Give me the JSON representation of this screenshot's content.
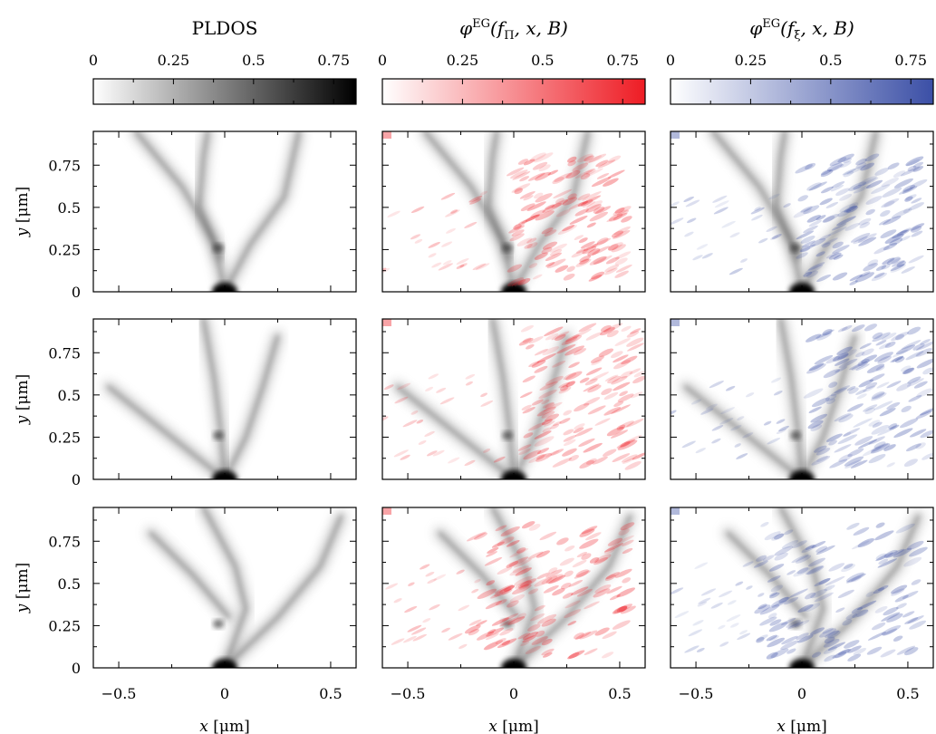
{
  "chart_data": {
    "type": "heatmap",
    "layout": "3 rows x 3 columns of spatial maps sharing x and y axes",
    "columns": [
      {
        "id": "pldos",
        "title": "PLDOS",
        "title_parts": null,
        "colormap": [
          "#ffffff",
          "#000000"
        ],
        "colorbar_ticks": [
          "0",
          "0.25",
          "0.5",
          "0.75"
        ],
        "colorbar_range": [
          0,
          0.82
        ],
        "overlay": false
      },
      {
        "id": "phi-pi",
        "title": "",
        "title_parts": {
          "symbol": "φ",
          "sup": "EG",
          "args": "(f",
          "sub": "Π",
          "rest": ", x, B)"
        },
        "colormap": [
          "#ffffff",
          "#ee1c24"
        ],
        "colorbar_ticks": [
          "0",
          "0.25",
          "0.5",
          "0.75"
        ],
        "colorbar_range": [
          0,
          0.82
        ],
        "overlay": true
      },
      {
        "id": "phi-xi",
        "title": "",
        "title_parts": {
          "symbol": "φ",
          "sup": "EG",
          "args": "(f",
          "sub": "ξ",
          "rest": ", x, B)"
        },
        "colormap": [
          "#ffffff",
          "#3b4fa6"
        ],
        "colorbar_ticks": [
          "0",
          "0.25",
          "0.5",
          "0.75"
        ],
        "colorbar_range": [
          0,
          0.82
        ],
        "overlay": true
      }
    ],
    "xlim": [
      -0.62,
      0.62
    ],
    "ylim": [
      0,
      0.95
    ],
    "xticks": [
      -0.5,
      0,
      0.5
    ],
    "xtick_labels": [
      "−0.5",
      "0",
      "0.5"
    ],
    "yticks": [
      0,
      0.25,
      0.5,
      0.75
    ],
    "ytick_labels": [
      "0",
      "0.25",
      "0.5",
      "0.75"
    ],
    "xlabel": {
      "var": "x",
      "unit": "[μm]"
    },
    "ylabel": {
      "var": "y",
      "unit": "[μm]"
    },
    "rows": [
      {
        "row": 1,
        "branches": [
          [
            [
              0,
              0
            ],
            [
              -0.05,
              0.3
            ],
            [
              -0.2,
              0.62
            ],
            [
              -0.42,
              0.95
            ]
          ],
          [
            [
              0,
              0
            ],
            [
              0.12,
              0.28
            ],
            [
              0.28,
              0.56
            ],
            [
              0.35,
              0.95
            ]
          ],
          [
            [
              -0.02,
              0.2
            ],
            [
              -0.12,
              0.5
            ],
            [
              -0.1,
              0.8
            ],
            [
              -0.08,
              0.95
            ]
          ]
        ],
        "signal_region": {
          "x": [
            0.0,
            0.55
          ],
          "y": [
            0.05,
            0.8
          ]
        }
      },
      {
        "row": 2,
        "branches": [
          [
            [
              0,
              0
            ],
            [
              -0.02,
              0.3
            ],
            [
              -0.05,
              0.6
            ],
            [
              -0.1,
              0.95
            ]
          ],
          [
            [
              0,
              0
            ],
            [
              0.1,
              0.25
            ],
            [
              0.18,
              0.55
            ],
            [
              0.25,
              0.85
            ]
          ],
          [
            [
              0,
              0
            ],
            [
              -0.3,
              0.3
            ],
            [
              -0.55,
              0.55
            ]
          ]
        ],
        "signal_region": {
          "x": [
            0.05,
            0.6
          ],
          "y": [
            0.08,
            0.9
          ]
        }
      },
      {
        "row": 3,
        "branches": [
          [
            [
              0,
              0
            ],
            [
              0.1,
              0.35
            ],
            [
              0.05,
              0.6
            ],
            [
              -0.1,
              0.95
            ]
          ],
          [
            [
              0,
              0
            ],
            [
              0.25,
              0.3
            ],
            [
              0.45,
              0.6
            ],
            [
              0.55,
              0.9
            ]
          ],
          [
            [
              0.02,
              0.3
            ],
            [
              -0.15,
              0.55
            ],
            [
              -0.35,
              0.8
            ]
          ]
        ],
        "signal_region": {
          "x": [
            -0.2,
            0.55
          ],
          "y": [
            0.05,
            0.85
          ]
        }
      }
    ]
  }
}
